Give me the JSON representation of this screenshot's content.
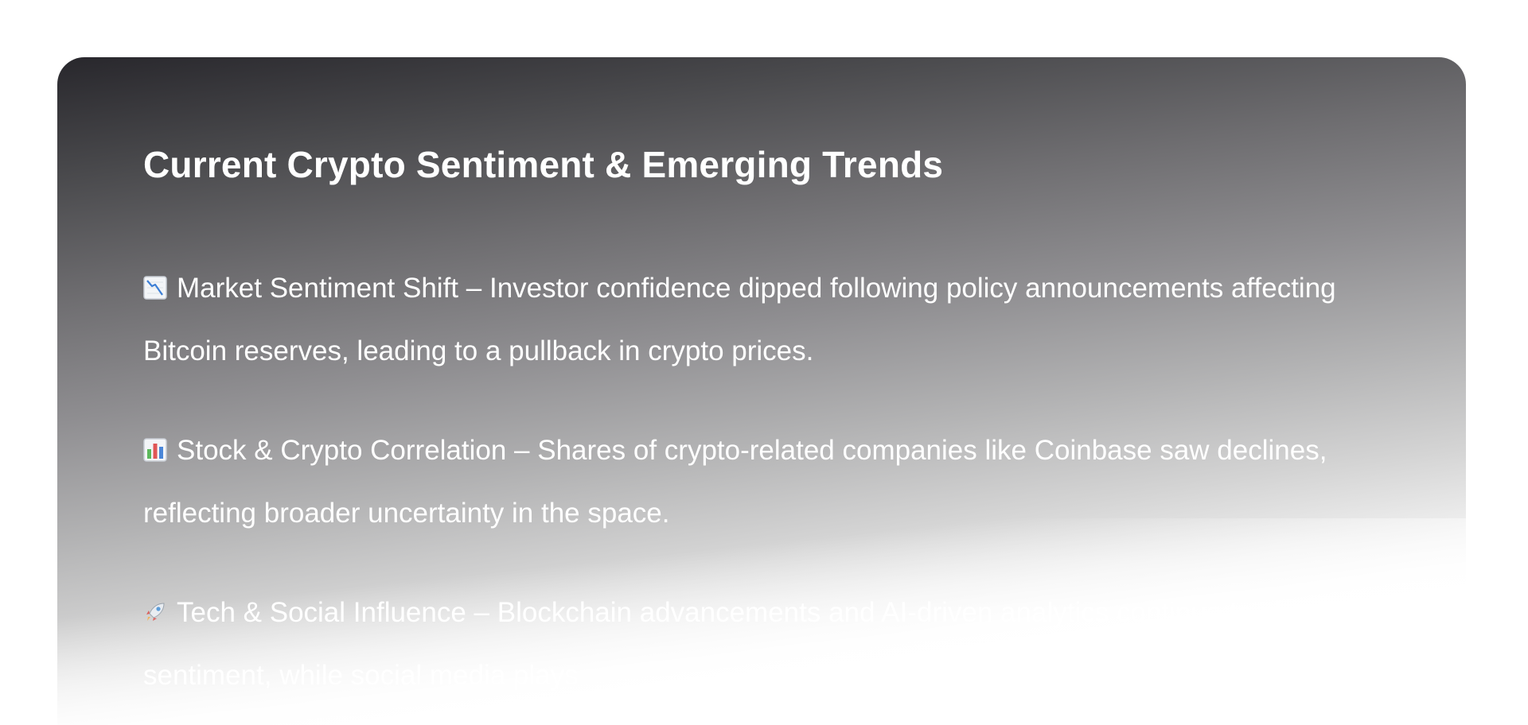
{
  "card": {
    "title": "Current Crypto Sentiment & Emerging Trends",
    "items": [
      {
        "icon": "chart-decreasing-icon",
        "heading": "Market Sentiment Shift",
        "separator": " – ",
        "text": "Investor confidence dipped following policy announcements affecting Bitcoin reserves, leading to a pullback in crypto prices."
      },
      {
        "icon": "bar-chart-icon",
        "heading": "Stock & Crypto Correlation",
        "separator": " – ",
        "text": "Shares of crypto-related companies like Coinbase saw declines, reflecting broader uncertainty in the space."
      },
      {
        "icon": "rocket-icon",
        "heading": "Tech & Social Influence",
        "separator": " – ",
        "text": "Blockchain advancements and AI-driven analytics continue to shape sentiment, while social media plays"
      }
    ]
  }
}
